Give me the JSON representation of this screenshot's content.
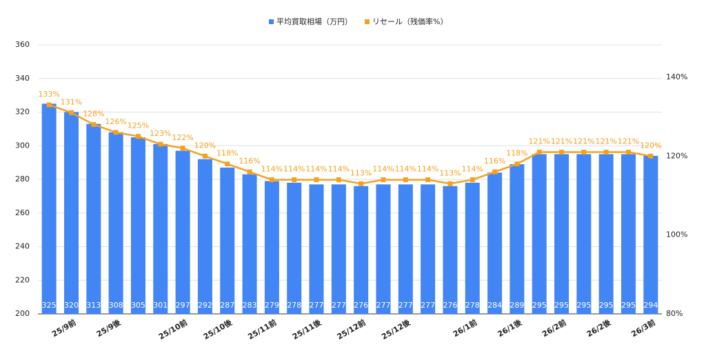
{
  "chart_data": {
    "type": "bar_line",
    "categories": [
      null,
      "25/9前",
      null,
      "25/9後",
      null,
      null,
      "25/10前",
      null,
      "25/10後",
      null,
      "25/11前",
      null,
      "25/11後",
      null,
      "25/12前",
      null,
      "25/12後",
      null,
      null,
      "26/1前",
      null,
      "26/1後",
      null,
      "26/2前",
      null,
      "26/2後",
      null,
      "26/3前"
    ],
    "series": [
      {
        "name": "平均買取相場（万円）",
        "color": "#4285f4",
        "type": "bar",
        "values": [
          325,
          320,
          313,
          308,
          305,
          301,
          297,
          292,
          287,
          283,
          279,
          278,
          277,
          277,
          276,
          277,
          277,
          277,
          276,
          278,
          284,
          289,
          295,
          295,
          295,
          295,
          295,
          294
        ]
      },
      {
        "name": "リセール（残価率%）",
        "color": "#f7a01c",
        "type": "line",
        "axis": "y2",
        "values": [
          133,
          131,
          128,
          126,
          125,
          123,
          122,
          120,
          118,
          116,
          114,
          114,
          114,
          114,
          113,
          114,
          114,
          114,
          113,
          114,
          116,
          118,
          121,
          121,
          121,
          121,
          121,
          120
        ],
        "value_labels": [
          "133%",
          "131%",
          "128%",
          "126%",
          "125%",
          "123%",
          "122%",
          "120%",
          "118%",
          "116%",
          "114%",
          "114%",
          "114%",
          "114%",
          "113%",
          "114%",
          "114%",
          "114%",
          "113%",
          "114%",
          "116%",
          "118%",
          "121%",
          "121%",
          "121%",
          "121%",
          "121%",
          "120%"
        ]
      }
    ],
    "ylim": [
      200,
      360
    ],
    "yticks": [
      200,
      220,
      240,
      260,
      280,
      300,
      320,
      340,
      360
    ],
    "y2lim": [
      80,
      148.2
    ],
    "y2ticks": [
      {
        "value": 80,
        "label": "80%"
      },
      {
        "value": 100,
        "label": "100%"
      },
      {
        "value": 120,
        "label": "120%"
      },
      {
        "value": 140,
        "label": "140%"
      }
    ],
    "grid": true,
    "legend": "top"
  }
}
